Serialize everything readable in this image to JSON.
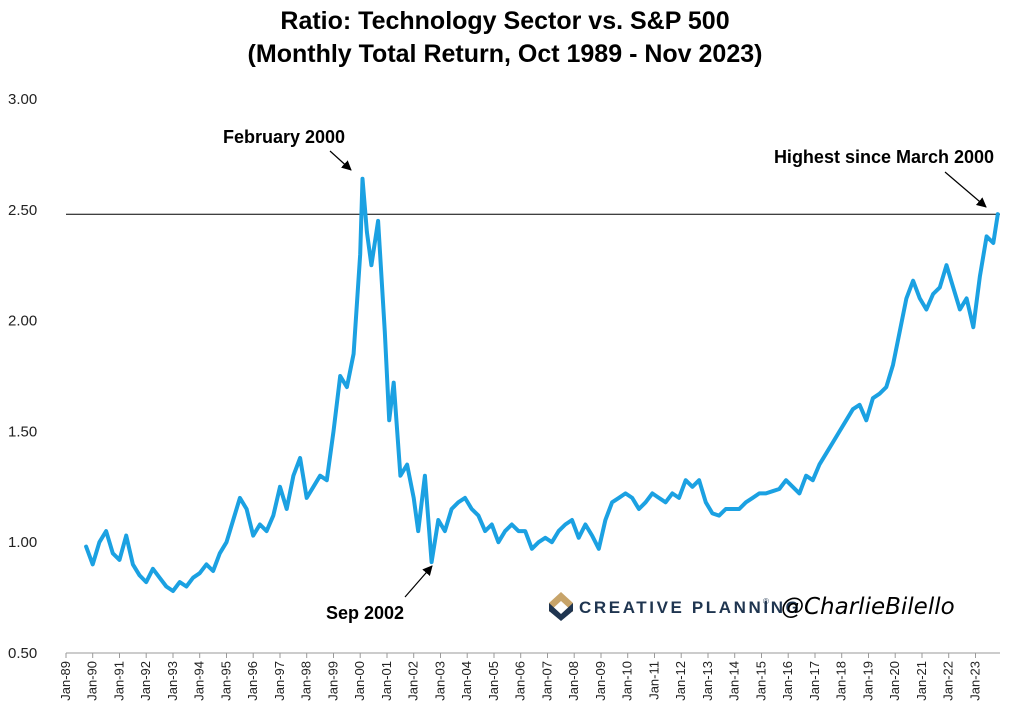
{
  "chart_data": {
    "type": "line",
    "title": [
      "Ratio: Technology Sector vs. S&P 500",
      "(Monthly Total Return, Oct 1989 - Nov 2023)"
    ],
    "xlabel": "",
    "ylabel": "",
    "ylim": [
      0.5,
      3.0
    ],
    "yticks": [
      "0.50",
      "1.00",
      "1.50",
      "2.00",
      "2.50",
      "3.00"
    ],
    "xlim": [
      "1989-01",
      "2023-12"
    ],
    "xticks": [
      "Jan-89",
      "Jan-90",
      "Jan-91",
      "Jan-92",
      "Jan-93",
      "Jan-94",
      "Jan-95",
      "Jan-96",
      "Jan-97",
      "Jan-98",
      "Jan-99",
      "Jan-00",
      "Jan-01",
      "Jan-02",
      "Jan-03",
      "Jan-04",
      "Jan-05",
      "Jan-06",
      "Jan-07",
      "Jan-08",
      "Jan-09",
      "Jan-10",
      "Jan-11",
      "Jan-12",
      "Jan-13",
      "Jan-14",
      "Jan-15",
      "Jan-16",
      "Jan-17",
      "Jan-18",
      "Jan-19",
      "Jan-20",
      "Jan-21",
      "Jan-22",
      "Jan-23"
    ],
    "grid": false,
    "line_color": "#1ba1e2",
    "reference_line": {
      "y": 2.48,
      "color": "#000000"
    },
    "series": [
      {
        "points": [
          [
            "1989-10",
            0.98
          ],
          [
            "1990-01",
            0.9
          ],
          [
            "1990-04",
            1.0
          ],
          [
            "1990-07",
            1.05
          ],
          [
            "1990-10",
            0.95
          ],
          [
            "1991-01",
            0.92
          ],
          [
            "1991-04",
            1.03
          ],
          [
            "1991-07",
            0.9
          ],
          [
            "1991-10",
            0.85
          ],
          [
            "1992-01",
            0.82
          ],
          [
            "1992-04",
            0.88
          ],
          [
            "1992-07",
            0.84
          ],
          [
            "1992-10",
            0.8
          ],
          [
            "1993-01",
            0.78
          ],
          [
            "1993-04",
            0.82
          ],
          [
            "1993-07",
            0.8
          ],
          [
            "1993-10",
            0.84
          ],
          [
            "1994-01",
            0.86
          ],
          [
            "1994-04",
            0.9
          ],
          [
            "1994-07",
            0.87
          ],
          [
            "1994-10",
            0.95
          ],
          [
            "1995-01",
            1.0
          ],
          [
            "1995-04",
            1.1
          ],
          [
            "1995-07",
            1.2
          ],
          [
            "1995-10",
            1.15
          ],
          [
            "1996-01",
            1.03
          ],
          [
            "1996-04",
            1.08
          ],
          [
            "1996-07",
            1.05
          ],
          [
            "1996-10",
            1.12
          ],
          [
            "1997-01",
            1.25
          ],
          [
            "1997-04",
            1.15
          ],
          [
            "1997-07",
            1.3
          ],
          [
            "1997-10",
            1.38
          ],
          [
            "1998-01",
            1.2
          ],
          [
            "1998-04",
            1.25
          ],
          [
            "1998-07",
            1.3
          ],
          [
            "1998-10",
            1.28
          ],
          [
            "1999-01",
            1.5
          ],
          [
            "1999-04",
            1.75
          ],
          [
            "1999-07",
            1.7
          ],
          [
            "1999-10",
            1.85
          ],
          [
            "2000-01",
            2.3
          ],
          [
            "2000-02",
            2.64
          ],
          [
            "2000-04",
            2.4
          ],
          [
            "2000-06",
            2.25
          ],
          [
            "2000-09",
            2.45
          ],
          [
            "2000-12",
            1.95
          ],
          [
            "2001-02",
            1.55
          ],
          [
            "2001-04",
            1.72
          ],
          [
            "2001-07",
            1.3
          ],
          [
            "2001-10",
            1.35
          ],
          [
            "2002-01",
            1.2
          ],
          [
            "2002-03",
            1.05
          ],
          [
            "2002-06",
            1.3
          ],
          [
            "2002-09",
            0.91
          ],
          [
            "2002-12",
            1.1
          ],
          [
            "2003-03",
            1.05
          ],
          [
            "2003-06",
            1.15
          ],
          [
            "2003-09",
            1.18
          ],
          [
            "2003-12",
            1.2
          ],
          [
            "2004-03",
            1.15
          ],
          [
            "2004-06",
            1.12
          ],
          [
            "2004-09",
            1.05
          ],
          [
            "2004-12",
            1.08
          ],
          [
            "2005-03",
            1.0
          ],
          [
            "2005-06",
            1.05
          ],
          [
            "2005-09",
            1.08
          ],
          [
            "2005-12",
            1.05
          ],
          [
            "2006-03",
            1.05
          ],
          [
            "2006-06",
            0.97
          ],
          [
            "2006-09",
            1.0
          ],
          [
            "2006-12",
            1.02
          ],
          [
            "2007-03",
            1.0
          ],
          [
            "2007-06",
            1.05
          ],
          [
            "2007-09",
            1.08
          ],
          [
            "2007-12",
            1.1
          ],
          [
            "2008-03",
            1.02
          ],
          [
            "2008-06",
            1.08
          ],
          [
            "2008-09",
            1.03
          ],
          [
            "2008-12",
            0.97
          ],
          [
            "2009-03",
            1.1
          ],
          [
            "2009-06",
            1.18
          ],
          [
            "2009-09",
            1.2
          ],
          [
            "2009-12",
            1.22
          ],
          [
            "2010-03",
            1.2
          ],
          [
            "2010-06",
            1.15
          ],
          [
            "2010-09",
            1.18
          ],
          [
            "2010-12",
            1.22
          ],
          [
            "2011-03",
            1.2
          ],
          [
            "2011-06",
            1.18
          ],
          [
            "2011-09",
            1.22
          ],
          [
            "2011-12",
            1.2
          ],
          [
            "2012-03",
            1.28
          ],
          [
            "2012-06",
            1.25
          ],
          [
            "2012-09",
            1.28
          ],
          [
            "2012-12",
            1.18
          ],
          [
            "2013-03",
            1.13
          ],
          [
            "2013-06",
            1.12
          ],
          [
            "2013-09",
            1.15
          ],
          [
            "2013-12",
            1.15
          ],
          [
            "2014-03",
            1.15
          ],
          [
            "2014-06",
            1.18
          ],
          [
            "2014-09",
            1.2
          ],
          [
            "2014-12",
            1.22
          ],
          [
            "2015-03",
            1.22
          ],
          [
            "2015-06",
            1.23
          ],
          [
            "2015-09",
            1.24
          ],
          [
            "2015-12",
            1.28
          ],
          [
            "2016-03",
            1.25
          ],
          [
            "2016-06",
            1.22
          ],
          [
            "2016-09",
            1.3
          ],
          [
            "2016-12",
            1.28
          ],
          [
            "2017-03",
            1.35
          ],
          [
            "2017-06",
            1.4
          ],
          [
            "2017-09",
            1.45
          ],
          [
            "2017-12",
            1.5
          ],
          [
            "2018-03",
            1.55
          ],
          [
            "2018-06",
            1.6
          ],
          [
            "2018-09",
            1.62
          ],
          [
            "2018-12",
            1.55
          ],
          [
            "2019-03",
            1.65
          ],
          [
            "2019-06",
            1.67
          ],
          [
            "2019-09",
            1.7
          ],
          [
            "2019-12",
            1.8
          ],
          [
            "2020-03",
            1.95
          ],
          [
            "2020-06",
            2.1
          ],
          [
            "2020-09",
            2.18
          ],
          [
            "2020-12",
            2.1
          ],
          [
            "2021-03",
            2.05
          ],
          [
            "2021-06",
            2.12
          ],
          [
            "2021-09",
            2.15
          ],
          [
            "2021-12",
            2.25
          ],
          [
            "2022-03",
            2.15
          ],
          [
            "2022-06",
            2.05
          ],
          [
            "2022-09",
            2.1
          ],
          [
            "2022-12",
            1.97
          ],
          [
            "2023-03",
            2.2
          ],
          [
            "2023-06",
            2.38
          ],
          [
            "2023-09",
            2.35
          ],
          [
            "2023-11",
            2.48
          ]
        ]
      }
    ],
    "annotations": [
      {
        "text": "February 2000",
        "x": "2000-02",
        "y": 2.64
      },
      {
        "text": "Sep 2002",
        "x": "2002-09",
        "y": 0.91
      },
      {
        "text": "Highest since March 2000",
        "x": "2023-11",
        "y": 2.48
      }
    ]
  },
  "branding": {
    "logo_text": "CREATIVE PLANNING",
    "logo_mark": "®",
    "handle": "@CharlieBilello",
    "logo_colors": {
      "navy": "#1f3550",
      "tan": "#c7a46a"
    }
  }
}
